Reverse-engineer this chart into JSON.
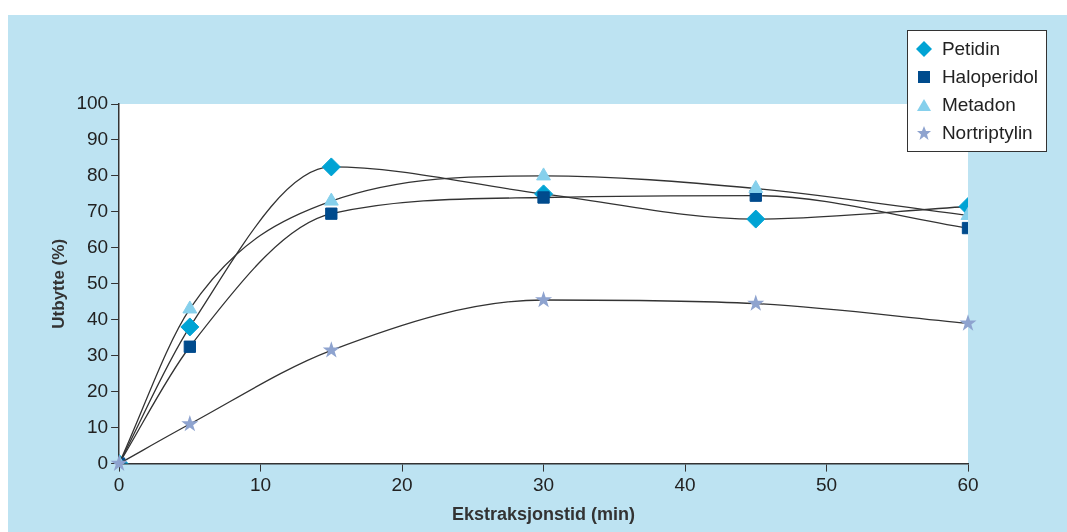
{
  "chart_data": {
    "type": "line",
    "xlabel": "Ekstraksjonstid (min)",
    "ylabel": "Utbytte (%)",
    "x": [
      0,
      5,
      15,
      30,
      45,
      60
    ],
    "series": [
      {
        "name": "Petidin",
        "color": "#00a3d4",
        "marker": "diamond",
        "values": [
          0,
          38,
          82.5,
          75,
          68,
          71.5
        ]
      },
      {
        "name": "Haloperidol",
        "color": "#004b8d",
        "marker": "square",
        "values": [
          0,
          32.5,
          69.5,
          74,
          74.5,
          65.5
        ]
      },
      {
        "name": "Metadon",
        "color": "#86d0ec",
        "marker": "triangle",
        "values": [
          0,
          43,
          73,
          80,
          76.5,
          69
        ]
      },
      {
        "name": "Nortriptylin",
        "color": "#8ea3cf",
        "marker": "star",
        "values": [
          0,
          11,
          31.5,
          45.5,
          44.5,
          39
        ]
      }
    ],
    "xlim": [
      0,
      60
    ],
    "xticks": [
      0,
      10,
      20,
      30,
      40,
      50,
      60
    ],
    "ylim": [
      0,
      100
    ],
    "yticks": [
      0,
      10,
      20,
      30,
      40,
      50,
      60,
      70,
      80,
      90,
      100
    ],
    "grid": false,
    "legend": "top right"
  }
}
